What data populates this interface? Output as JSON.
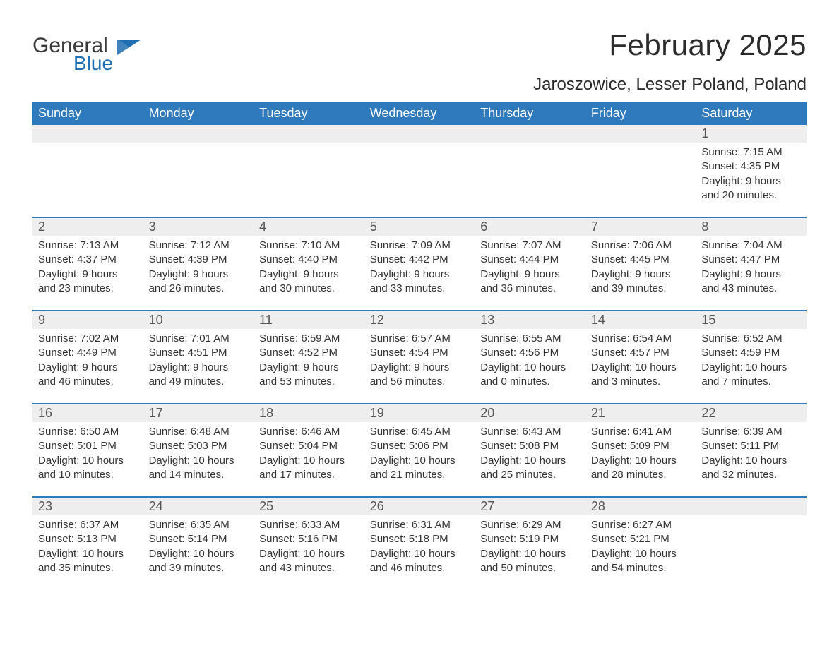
{
  "brand": {
    "text1": "General",
    "text2": "Blue",
    "color_general": "#3a3a3a",
    "color_blue": "#1f6fb2",
    "flag_color": "#1f6fb2"
  },
  "title": {
    "month": "February 2025",
    "location": "Jaroszowice, Lesser Poland, Poland",
    "title_fontsize": 42,
    "location_fontsize": 24,
    "text_color": "#2b2b2b"
  },
  "style": {
    "header_bg": "#2f79bd",
    "header_text": "#ffffff",
    "row_separator": "#2f79bd",
    "daynum_bg": "#eeeeee",
    "daynum_text": "#555555",
    "body_text": "#333333",
    "body_bg": "#ffffff",
    "dow_fontsize": 18,
    "daynum_fontsize": 18,
    "detail_fontsize": 15
  },
  "days_of_week": [
    "Sunday",
    "Monday",
    "Tuesday",
    "Wednesday",
    "Thursday",
    "Friday",
    "Saturday"
  ],
  "weeks": [
    [
      null,
      null,
      null,
      null,
      null,
      null,
      {
        "n": "1",
        "sunrise": "7:15 AM",
        "sunset": "4:35 PM",
        "daylight": "9 hours and 20 minutes."
      }
    ],
    [
      {
        "n": "2",
        "sunrise": "7:13 AM",
        "sunset": "4:37 PM",
        "daylight": "9 hours and 23 minutes."
      },
      {
        "n": "3",
        "sunrise": "7:12 AM",
        "sunset": "4:39 PM",
        "daylight": "9 hours and 26 minutes."
      },
      {
        "n": "4",
        "sunrise": "7:10 AM",
        "sunset": "4:40 PM",
        "daylight": "9 hours and 30 minutes."
      },
      {
        "n": "5",
        "sunrise": "7:09 AM",
        "sunset": "4:42 PM",
        "daylight": "9 hours and 33 minutes."
      },
      {
        "n": "6",
        "sunrise": "7:07 AM",
        "sunset": "4:44 PM",
        "daylight": "9 hours and 36 minutes."
      },
      {
        "n": "7",
        "sunrise": "7:06 AM",
        "sunset": "4:45 PM",
        "daylight": "9 hours and 39 minutes."
      },
      {
        "n": "8",
        "sunrise": "7:04 AM",
        "sunset": "4:47 PM",
        "daylight": "9 hours and 43 minutes."
      }
    ],
    [
      {
        "n": "9",
        "sunrise": "7:02 AM",
        "sunset": "4:49 PM",
        "daylight": "9 hours and 46 minutes."
      },
      {
        "n": "10",
        "sunrise": "7:01 AM",
        "sunset": "4:51 PM",
        "daylight": "9 hours and 49 minutes."
      },
      {
        "n": "11",
        "sunrise": "6:59 AM",
        "sunset": "4:52 PM",
        "daylight": "9 hours and 53 minutes."
      },
      {
        "n": "12",
        "sunrise": "6:57 AM",
        "sunset": "4:54 PM",
        "daylight": "9 hours and 56 minutes."
      },
      {
        "n": "13",
        "sunrise": "6:55 AM",
        "sunset": "4:56 PM",
        "daylight": "10 hours and 0 minutes."
      },
      {
        "n": "14",
        "sunrise": "6:54 AM",
        "sunset": "4:57 PM",
        "daylight": "10 hours and 3 minutes."
      },
      {
        "n": "15",
        "sunrise": "6:52 AM",
        "sunset": "4:59 PM",
        "daylight": "10 hours and 7 minutes."
      }
    ],
    [
      {
        "n": "16",
        "sunrise": "6:50 AM",
        "sunset": "5:01 PM",
        "daylight": "10 hours and 10 minutes."
      },
      {
        "n": "17",
        "sunrise": "6:48 AM",
        "sunset": "5:03 PM",
        "daylight": "10 hours and 14 minutes."
      },
      {
        "n": "18",
        "sunrise": "6:46 AM",
        "sunset": "5:04 PM",
        "daylight": "10 hours and 17 minutes."
      },
      {
        "n": "19",
        "sunrise": "6:45 AM",
        "sunset": "5:06 PM",
        "daylight": "10 hours and 21 minutes."
      },
      {
        "n": "20",
        "sunrise": "6:43 AM",
        "sunset": "5:08 PM",
        "daylight": "10 hours and 25 minutes."
      },
      {
        "n": "21",
        "sunrise": "6:41 AM",
        "sunset": "5:09 PM",
        "daylight": "10 hours and 28 minutes."
      },
      {
        "n": "22",
        "sunrise": "6:39 AM",
        "sunset": "5:11 PM",
        "daylight": "10 hours and 32 minutes."
      }
    ],
    [
      {
        "n": "23",
        "sunrise": "6:37 AM",
        "sunset": "5:13 PM",
        "daylight": "10 hours and 35 minutes."
      },
      {
        "n": "24",
        "sunrise": "6:35 AM",
        "sunset": "5:14 PM",
        "daylight": "10 hours and 39 minutes."
      },
      {
        "n": "25",
        "sunrise": "6:33 AM",
        "sunset": "5:16 PM",
        "daylight": "10 hours and 43 minutes."
      },
      {
        "n": "26",
        "sunrise": "6:31 AM",
        "sunset": "5:18 PM",
        "daylight": "10 hours and 46 minutes."
      },
      {
        "n": "27",
        "sunrise": "6:29 AM",
        "sunset": "5:19 PM",
        "daylight": "10 hours and 50 minutes."
      },
      {
        "n": "28",
        "sunrise": "6:27 AM",
        "sunset": "5:21 PM",
        "daylight": "10 hours and 54 minutes."
      },
      null
    ]
  ],
  "labels": {
    "sunrise": "Sunrise: ",
    "sunset": "Sunset: ",
    "daylight": "Daylight: "
  }
}
